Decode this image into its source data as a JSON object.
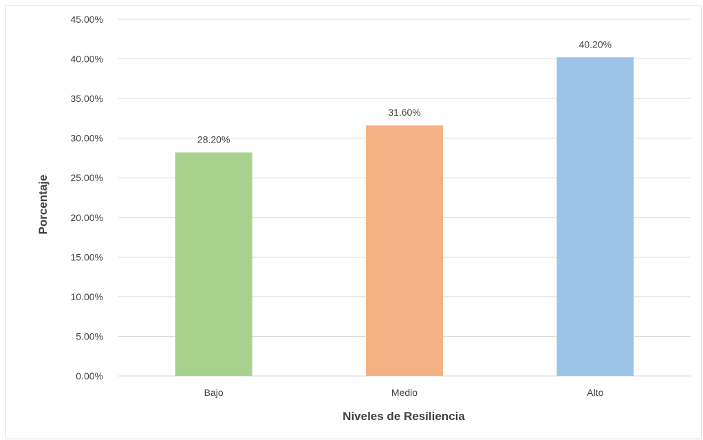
{
  "chart_data": {
    "type": "bar",
    "categories": [
      "Bajo",
      "Medio",
      "Alto"
    ],
    "values": [
      28.2,
      31.6,
      40.2
    ],
    "data_labels": [
      "28.20%",
      "31.60%",
      "40.20%"
    ],
    "colors": [
      "#a9d18e",
      "#f4b183",
      "#9dc3e6"
    ],
    "xlabel": "Niveles de Resiliencia",
    "ylabel": "Porcentaje",
    "ylim": [
      0,
      45
    ],
    "yticks": [
      0,
      5,
      10,
      15,
      20,
      25,
      30,
      35,
      40,
      45
    ],
    "ytick_labels": [
      "0.00%",
      "5.00%",
      "10.00%",
      "15.00%",
      "20.00%",
      "25.00%",
      "30.00%",
      "35.00%",
      "40.00%",
      "45.00%"
    ],
    "grid": true,
    "gridline_color": "#d9d9d9"
  }
}
